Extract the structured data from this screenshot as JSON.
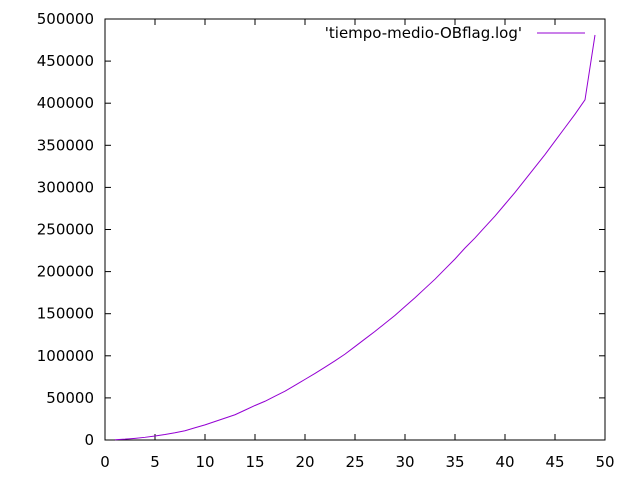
{
  "chart_data": {
    "type": "line",
    "title": "",
    "xlabel": "",
    "ylabel": "",
    "xlim": [
      0,
      50
    ],
    "ylim": [
      0,
      500000
    ],
    "xticks": [
      0,
      5,
      10,
      15,
      20,
      25,
      30,
      35,
      40,
      45,
      50
    ],
    "yticks": [
      0,
      50000,
      100000,
      150000,
      200000,
      250000,
      300000,
      350000,
      400000,
      450000,
      500000
    ],
    "grid": false,
    "legend_position": "top-right",
    "series": [
      {
        "name": "'tiempo-medio-OBflag.log'",
        "color": "#9400d3",
        "x": [
          1,
          2,
          3,
          4,
          5,
          6,
          7,
          8,
          9,
          10,
          11,
          12,
          13,
          14,
          15,
          16,
          17,
          18,
          19,
          20,
          21,
          22,
          23,
          24,
          25,
          26,
          27,
          28,
          29,
          30,
          31,
          32,
          33,
          34,
          35,
          36,
          37,
          38,
          39,
          40,
          41,
          42,
          43,
          44,
          45,
          46,
          47,
          48,
          49
        ],
        "y": [
          300,
          1000,
          2000,
          3200,
          4700,
          6500,
          8600,
          11000,
          14500,
          18000,
          22000,
          26000,
          30000,
          35500,
          41000,
          46000,
          52000,
          58000,
          65000,
          72000,
          79000,
          86500,
          94000,
          102000,
          111000,
          120000,
          129000,
          138500,
          148000,
          158500,
          169000,
          180000,
          191000,
          203000,
          215000,
          228000,
          240000,
          253000,
          266000,
          280000,
          294000,
          309000,
          324000,
          339000,
          355000,
          371000,
          387000,
          404000,
          481000
        ]
      }
    ]
  }
}
